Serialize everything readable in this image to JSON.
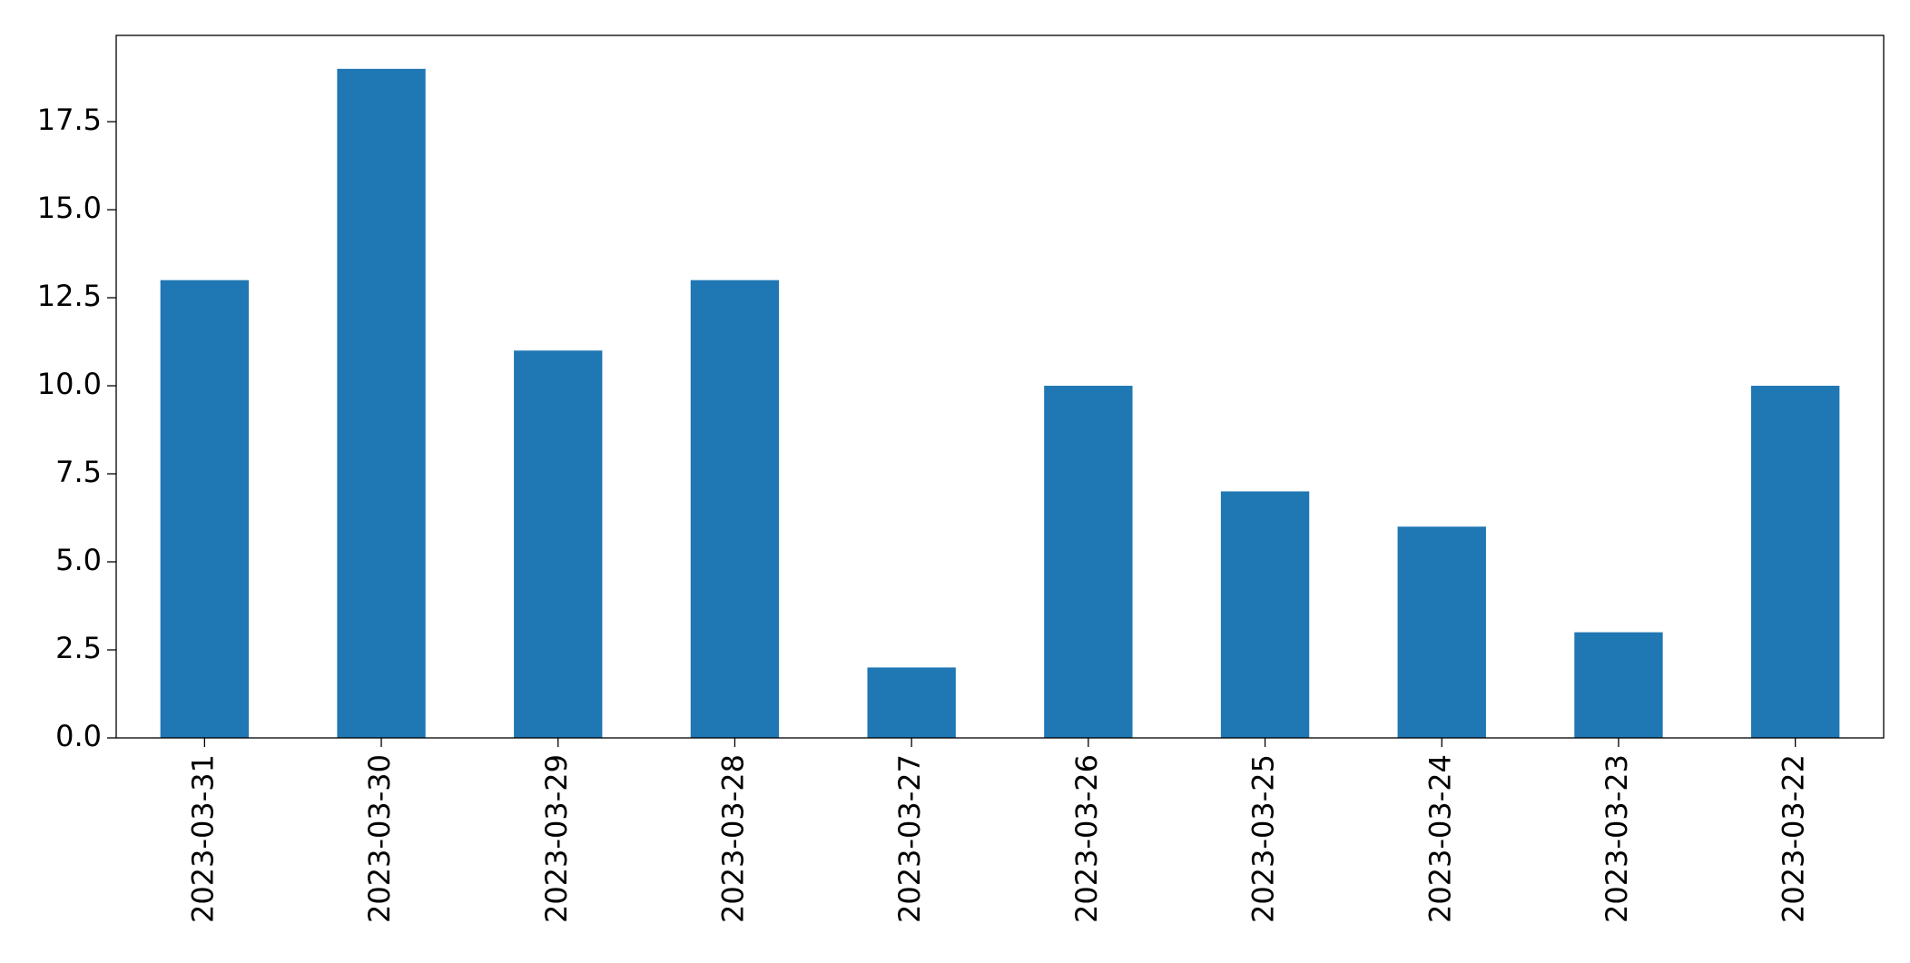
{
  "chart_data": {
    "type": "bar",
    "categories": [
      "2023-03-31",
      "2023-03-30",
      "2023-03-29",
      "2023-03-28",
      "2023-03-27",
      "2023-03-26",
      "2023-03-25",
      "2023-03-24",
      "2023-03-23",
      "2023-03-22"
    ],
    "values": [
      13,
      19,
      11,
      13,
      2,
      10,
      7,
      6,
      3,
      10
    ],
    "color": "#1f77b4",
    "ylim": [
      0,
      19.95
    ],
    "yticks": [
      {
        "value": 0,
        "label": "0.0"
      },
      2.5,
      {
        "value": 5,
        "label": "5.0"
      },
      7.5,
      {
        "value": 10,
        "label": "10.0"
      },
      12.5,
      {
        "value": 15,
        "label": "15.0"
      },
      17.5
    ],
    "grid": false
  }
}
